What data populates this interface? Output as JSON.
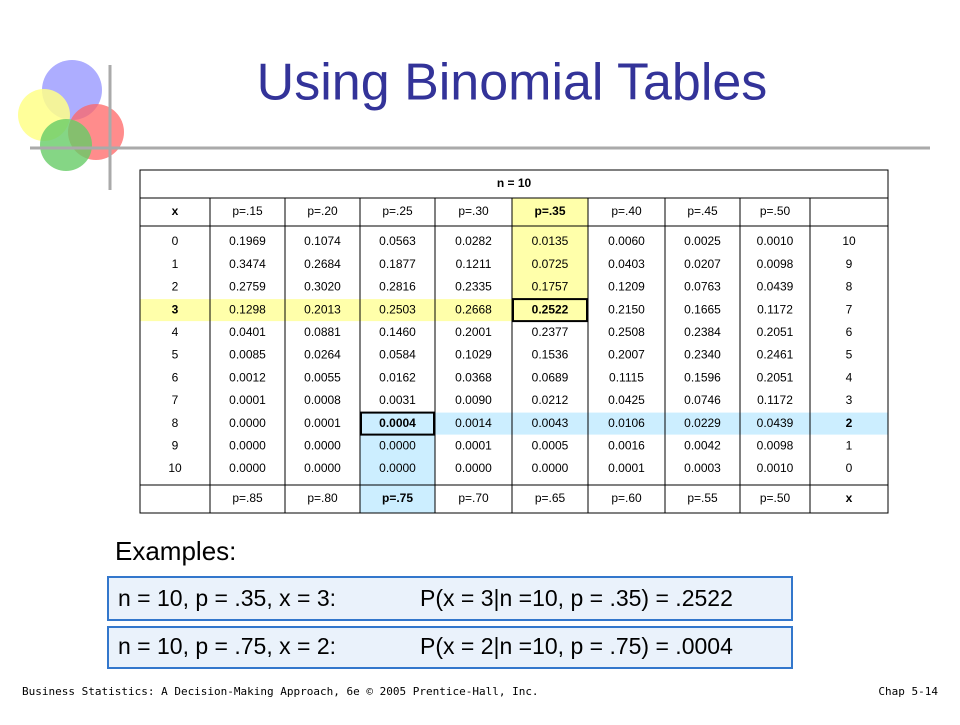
{
  "title": "Using Binomial Tables",
  "table": {
    "n_label": "n = 10",
    "top_header": [
      "x",
      "p=.15",
      "p=.20",
      "p=.25",
      "p=.30",
      "p=.35",
      "p=.40",
      "p=.45",
      "p=.50"
    ],
    "rows": [
      [
        "0",
        "0.1969",
        "0.1074",
        "0.0563",
        "0.0282",
        "0.0135",
        "0.0060",
        "0.0025",
        "0.0010",
        "10"
      ],
      [
        "1",
        "0.3474",
        "0.2684",
        "0.1877",
        "0.1211",
        "0.0725",
        "0.0403",
        "0.0207",
        "0.0098",
        "9"
      ],
      [
        "2",
        "0.2759",
        "0.3020",
        "0.2816",
        "0.2335",
        "0.1757",
        "0.1209",
        "0.0763",
        "0.0439",
        "8"
      ],
      [
        "3",
        "0.1298",
        "0.2013",
        "0.2503",
        "0.2668",
        "0.2522",
        "0.2150",
        "0.1665",
        "0.1172",
        "7"
      ],
      [
        "4",
        "0.0401",
        "0.0881",
        "0.1460",
        "0.2001",
        "0.2377",
        "0.2508",
        "0.2384",
        "0.2051",
        "6"
      ],
      [
        "5",
        "0.0085",
        "0.0264",
        "0.0584",
        "0.1029",
        "0.1536",
        "0.2007",
        "0.2340",
        "0.2461",
        "5"
      ],
      [
        "6",
        "0.0012",
        "0.0055",
        "0.0162",
        "0.0368",
        "0.0689",
        "0.1115",
        "0.1596",
        "0.2051",
        "4"
      ],
      [
        "7",
        "0.0001",
        "0.0008",
        "0.0031",
        "0.0090",
        "0.0212",
        "0.0425",
        "0.0746",
        "0.1172",
        "3"
      ],
      [
        "8",
        "0.0000",
        "0.0001",
        "0.0004",
        "0.0014",
        "0.0043",
        "0.0106",
        "0.0229",
        "0.0439",
        "2"
      ],
      [
        "9",
        "0.0000",
        "0.0000",
        "0.0000",
        "0.0001",
        "0.0005",
        "0.0016",
        "0.0042",
        "0.0098",
        "1"
      ],
      [
        "10",
        "0.0000",
        "0.0000",
        "0.0000",
        "0.0000",
        "0.0000",
        "0.0001",
        "0.0003",
        "0.0010",
        "0"
      ]
    ],
    "bottom_header": [
      "p=.85",
      "p=.80",
      "p=.75",
      "p=.70",
      "p=.65",
      "p=.60",
      "p=.55",
      "p=.50",
      "x"
    ]
  },
  "examples_label": "Examples:",
  "examples": [
    {
      "setup": "n = 10, p = .35, x = 3:",
      "result": "P(x = 3|n =10, p = .35) = .2522"
    },
    {
      "setup": "n = 10, p = .75, x = 2:",
      "result": "P(x = 2|n =10, p = .75) = .0004"
    }
  ],
  "footer": {
    "left": "Business Statistics: A Decision-Making Approach, 6e © 2005 Prentice-Hall, Inc.",
    "right": "Chap 5-14"
  }
}
